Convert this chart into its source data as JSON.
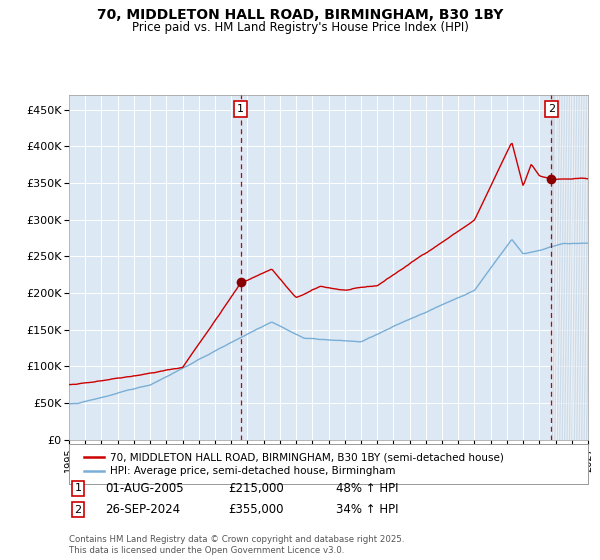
{
  "title": "70, MIDDLETON HALL ROAD, BIRMINGHAM, B30 1BY",
  "subtitle": "Price paid vs. HM Land Registry's House Price Index (HPI)",
  "xlim": [
    1995.0,
    2027.0
  ],
  "ylim": [
    0,
    470000
  ],
  "yticks": [
    0,
    50000,
    100000,
    150000,
    200000,
    250000,
    300000,
    350000,
    400000,
    450000
  ],
  "ytick_labels": [
    "£0",
    "£50K",
    "£100K",
    "£150K",
    "£200K",
    "£250K",
    "£300K",
    "£350K",
    "£400K",
    "£450K"
  ],
  "red_line_color": "#cc0000",
  "blue_line_color": "#7aaed6",
  "bg_color": "#dce9f5",
  "grid_color": "#ffffff",
  "vline_color": "#cc0000",
  "marker1_x": 2005.583,
  "marker1_y": 215000,
  "marker2_x": 2024.733,
  "marker2_y": 355000,
  "sale1_date": "01-AUG-2005",
  "sale1_price": "£215,000",
  "sale1_hpi": "48% ↑ HPI",
  "sale2_date": "26-SEP-2024",
  "sale2_price": "£355,000",
  "sale2_hpi": "34% ↑ HPI",
  "legend1": "70, MIDDLETON HALL ROAD, BIRMINGHAM, B30 1BY (semi-detached house)",
  "legend2": "HPI: Average price, semi-detached house, Birmingham",
  "footer": "Contains HM Land Registry data © Crown copyright and database right 2025.\nThis data is licensed under the Open Government Licence v3.0."
}
